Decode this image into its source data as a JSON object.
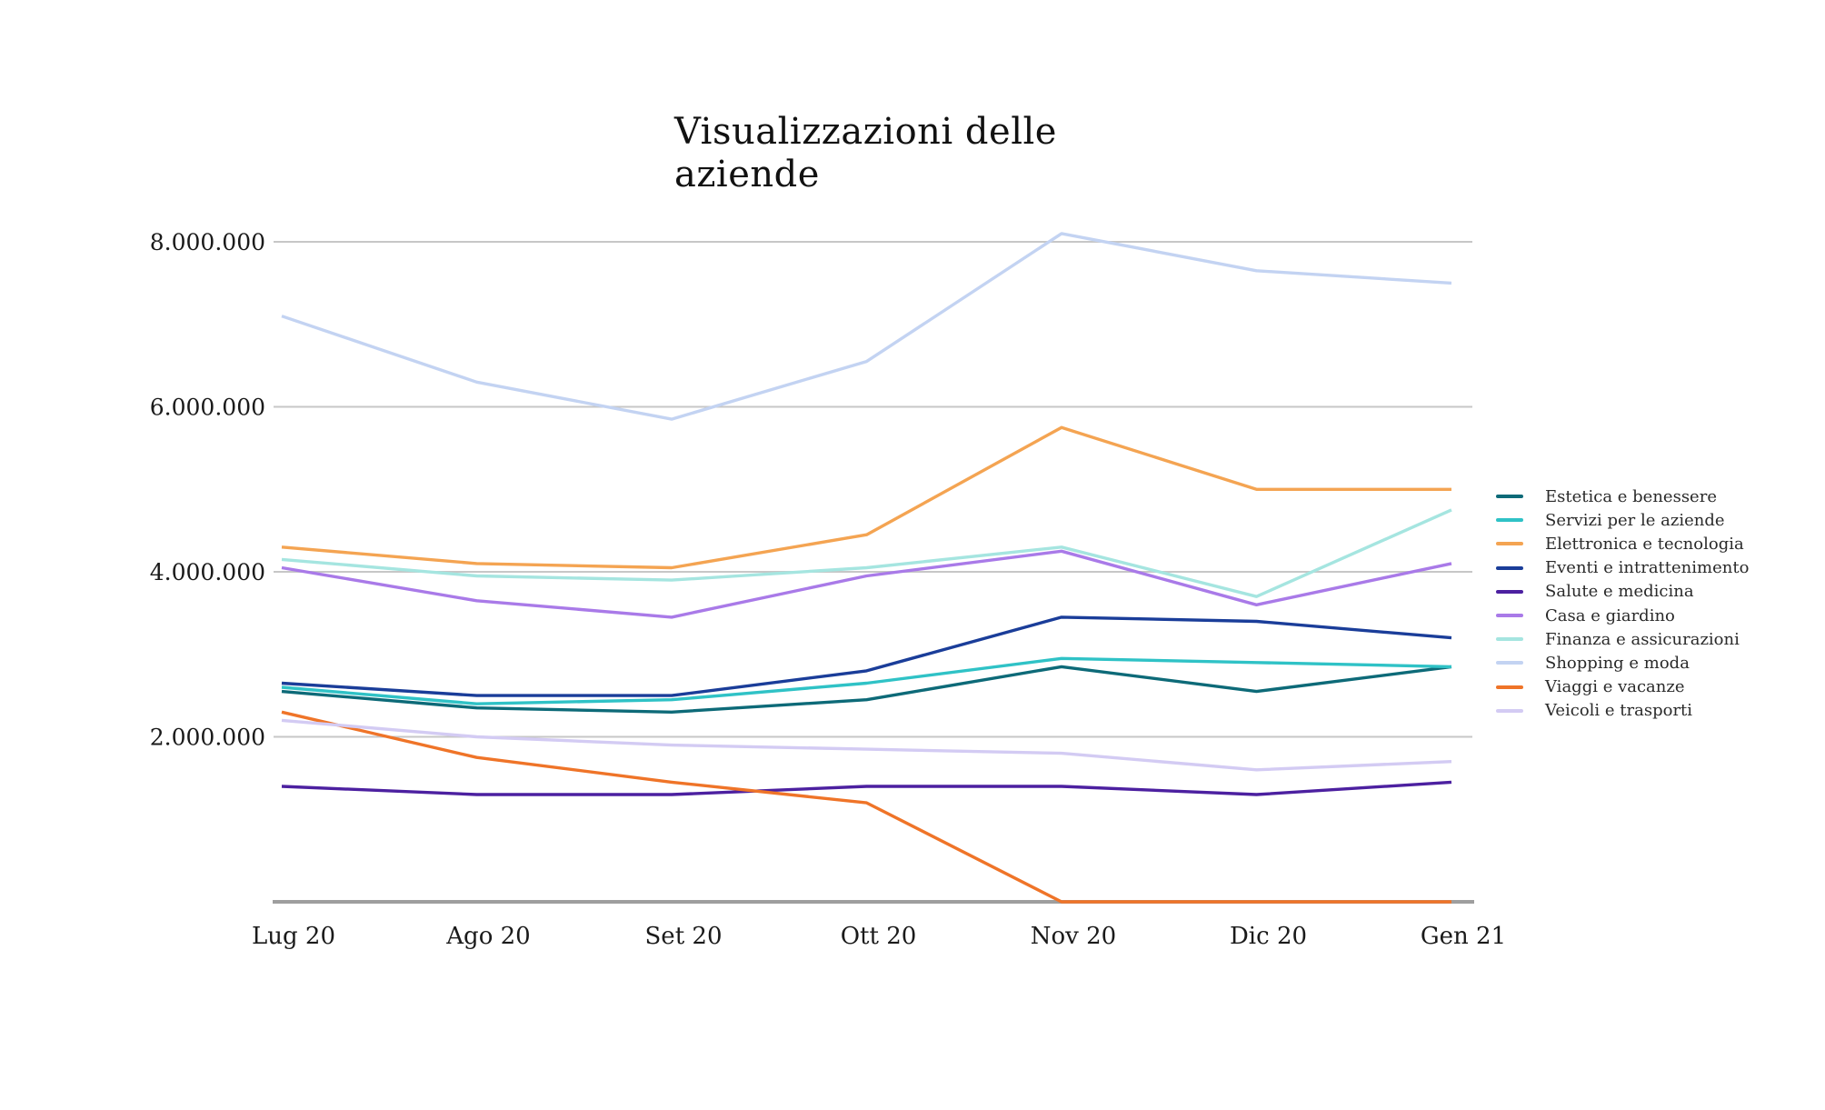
{
  "chart_data": {
    "type": "line",
    "title": "Visualizzazioni delle aziende",
    "xlabel": "",
    "ylabel": "",
    "categories": [
      "Lug 20",
      "Ago 20",
      "Set 20",
      "Ott 20",
      "Nov 20",
      "Dic 20",
      "Gen 21"
    ],
    "series": [
      {
        "name": "Estetica e benessere",
        "color": "#0d6a78",
        "values": [
          2550000,
          2350000,
          2300000,
          2450000,
          2850000,
          2550000,
          2850000
        ]
      },
      {
        "name": "Servizi per le aziende",
        "color": "#2fc2c6",
        "values": [
          2600000,
          2400000,
          2450000,
          2650000,
          2950000,
          2900000,
          2850000
        ]
      },
      {
        "name": "Elettronica e tecnologia",
        "color": "#f4a452",
        "values": [
          4300000,
          4100000,
          4050000,
          4450000,
          5750000,
          5000000,
          5000000
        ]
      },
      {
        "name": "Eventi e intrattenimento",
        "color": "#1a3d99",
        "values": [
          2650000,
          2500000,
          2500000,
          2800000,
          3450000,
          3400000,
          3200000
        ]
      },
      {
        "name": "Salute e medicina",
        "color": "#4c20a0",
        "values": [
          1400000,
          1300000,
          1300000,
          1400000,
          1400000,
          1300000,
          1450000
        ]
      },
      {
        "name": "Casa e giardino",
        "color": "#a97ae8",
        "values": [
          4050000,
          3650000,
          3450000,
          3950000,
          4250000,
          3600000,
          4100000
        ]
      },
      {
        "name": "Finanza e assicurazioni",
        "color": "#a5e5e0",
        "values": [
          4150000,
          3950000,
          3900000,
          4050000,
          4300000,
          3700000,
          4750000
        ]
      },
      {
        "name": "Shopping e moda",
        "color": "#c3d3f2",
        "values": [
          7100000,
          6300000,
          5850000,
          6550000,
          8100000,
          7650000,
          7500000
        ]
      },
      {
        "name": "Viaggi e vacanze",
        "color": "#ef7428",
        "values": [
          2300000,
          1750000,
          1450000,
          1200000,
          0,
          0,
          0
        ]
      },
      {
        "name": "Veicoli e trasporti",
        "color": "#d3cbf3",
        "values": [
          2200000,
          2000000,
          1900000,
          1850000,
          1800000,
          1600000,
          1700000
        ]
      }
    ],
    "y_ticks": [
      {
        "value": 2000000,
        "label": "2.000.000"
      },
      {
        "value": 4000000,
        "label": "4.000.000"
      },
      {
        "value": 6000000,
        "label": "6.000.000"
      },
      {
        "value": 8000000,
        "label": "8.000.000"
      }
    ],
    "ylim": [
      0,
      8800000
    ],
    "grid": "horizontal",
    "legend_position": "right",
    "colors": {
      "gridline": "#c7c7c7",
      "axis": "#9e9e9e",
      "tick_text": "#1a1a1a",
      "background": "#ffffff"
    }
  }
}
